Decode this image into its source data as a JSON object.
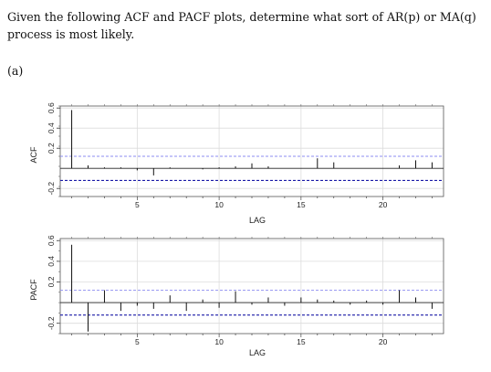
{
  "question": {
    "text": "Given the following ACF and PACF plots, determine what sort of AR(p) or MA(q) process is most likely."
  },
  "part_label": "(a)",
  "chart_data": [
    {
      "type": "bar",
      "ylabel": "ACF",
      "xlabel": "LAG",
      "x": [
        1,
        2,
        3,
        4,
        5,
        6,
        7,
        8,
        9,
        10,
        11,
        12,
        13,
        14,
        15,
        16,
        17,
        18,
        19,
        20,
        21,
        22,
        23
      ],
      "values": [
        0.58,
        0.03,
        0.01,
        0.01,
        -0.02,
        -0.07,
        0.01,
        0.0,
        -0.01,
        0.01,
        0.02,
        0.05,
        0.02,
        0.0,
        0.0,
        0.1,
        0.06,
        0.0,
        0.0,
        0.0,
        0.03,
        0.08,
        0.06
      ],
      "xticks": [
        5,
        10,
        15,
        20
      ],
      "yticks": [
        -0.2,
        0.2,
        0.4,
        0.6
      ],
      "ytick_labels": [
        "-0.2",
        "0.2",
        "0.4",
        "0.6"
      ],
      "ylim": [
        -0.28,
        0.62
      ],
      "xlim": [
        0.3,
        23.7
      ],
      "conf_band": 0.12
    },
    {
      "type": "bar",
      "ylabel": "PACF",
      "xlabel": "LAG",
      "x": [
        1,
        2,
        3,
        4,
        5,
        6,
        7,
        8,
        9,
        10,
        11,
        12,
        13,
        14,
        15,
        16,
        17,
        18,
        19,
        20,
        21,
        22,
        23
      ],
      "values": [
        0.56,
        -0.28,
        0.12,
        -0.08,
        -0.03,
        -0.06,
        0.07,
        -0.08,
        0.03,
        -0.05,
        0.11,
        -0.02,
        0.05,
        -0.03,
        0.05,
        0.03,
        0.02,
        -0.02,
        0.02,
        -0.02,
        0.12,
        0.05,
        -0.06
      ],
      "xticks": [
        5,
        10,
        15,
        20
      ],
      "yticks": [
        -0.2,
        0.2,
        0.4,
        0.6
      ],
      "ytick_labels": [
        "-0.2",
        "0.2",
        "0.4",
        "0.6"
      ],
      "ylim": [
        -0.3,
        0.62
      ],
      "xlim": [
        0.3,
        23.7
      ],
      "conf_band": 0.12
    }
  ]
}
